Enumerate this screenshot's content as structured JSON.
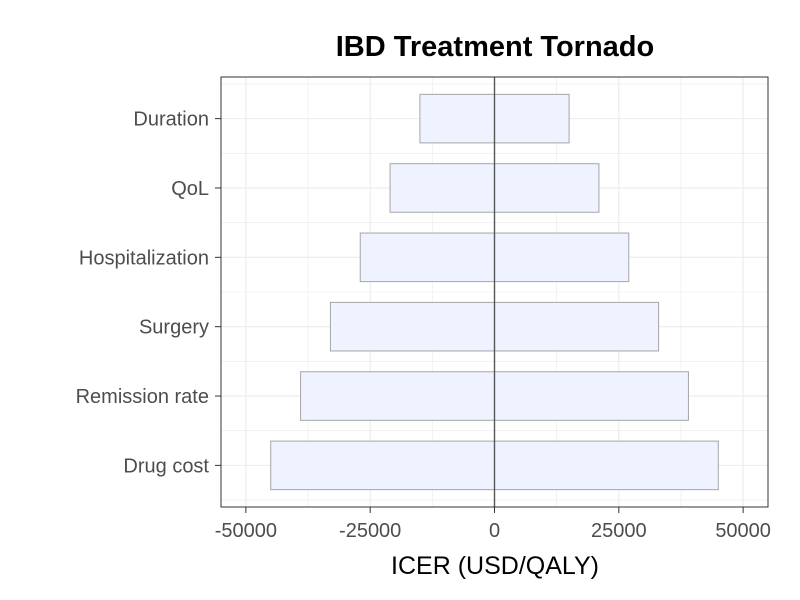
{
  "chart_data": {
    "type": "bar",
    "orientation": "horizontal",
    "title": "IBD Treatment Tornado",
    "xlabel": "ICER (USD/QALY)",
    "ylabel": "",
    "xlim": [
      -55000,
      55000
    ],
    "x_ticks": [
      -50000,
      -25000,
      0,
      25000,
      50000
    ],
    "x_tick_labels": [
      "-50000",
      "-25000",
      "0",
      "25000",
      "50000"
    ],
    "grid": true,
    "legend": "none",
    "baseline": 0,
    "categories": [
      "Duration",
      "QoL",
      "Hospitalization",
      "Surgery",
      "Remission rate",
      "Drug cost"
    ],
    "low": [
      -15000,
      -21000,
      -27000,
      -33000,
      -39000,
      -45000
    ],
    "high": [
      15000,
      21000,
      27000,
      33000,
      39000,
      45000
    ],
    "colors": {
      "bar_fill": "#eef3ff",
      "bar_stroke": "#a6a6a6",
      "grid": "#ebebeb",
      "panel_border": "#333333",
      "baseline": "#555555"
    }
  }
}
